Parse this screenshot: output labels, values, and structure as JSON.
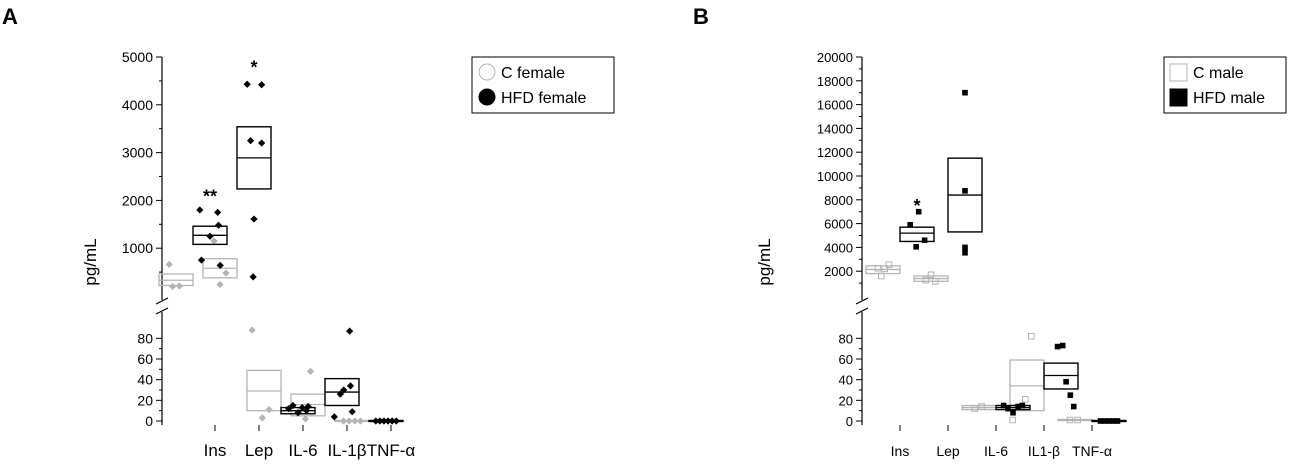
{
  "chart_data": [
    {
      "panel_label": "A",
      "type": "scatter",
      "ylabel": "pg/mL",
      "categories": [
        "Ins",
        "Lep",
        "IL-6",
        "IL-1β",
        "TNF-α"
      ],
      "axis_break": true,
      "y_upper": {
        "ylim": [
          0,
          5000
        ],
        "ticks": [
          1000,
          2000,
          3000,
          4000,
          5000
        ]
      },
      "y_lower": {
        "ylim": [
          0,
          90
        ],
        "ticks": [
          0,
          20,
          40,
          60,
          80
        ]
      },
      "legend": {
        "position": "top-right",
        "entries": [
          "C female",
          "HFD female"
        ],
        "marker": "circle"
      },
      "colors": {
        "control": "#b4b4b4",
        "hfd": "#000000"
      },
      "series": [
        {
          "name": "C female",
          "group": "control",
          "marker": "diamond",
          "points": [
            {
              "cat": 0,
              "off": -0.4,
              "seg": "upper",
              "y": 660
            },
            {
              "cat": 0,
              "off": -0.2,
              "seg": "upper",
              "y": 200
            },
            {
              "cat": 0,
              "off": 0.2,
              "seg": "upper",
              "y": 210
            },
            {
              "cat": 1,
              "off": -0.35,
              "seg": "upper",
              "y": 1150
            },
            {
              "cat": 1,
              "off": 0.0,
              "seg": "upper",
              "y": 240
            },
            {
              "cat": 1,
              "off": 0.35,
              "seg": "upper",
              "y": 480
            },
            {
              "cat": 2,
              "off": -0.7,
              "seg": "lower",
              "y": 88
            },
            {
              "cat": 2,
              "off": -0.1,
              "seg": "lower",
              "y": 3
            },
            {
              "cat": 2,
              "off": 0.3,
              "seg": "lower",
              "y": 11
            },
            {
              "cat": 3,
              "off": -0.55,
              "seg": "lower",
              "y": 9
            },
            {
              "cat": 3,
              "off": -0.15,
              "seg": "lower",
              "y": 2
            },
            {
              "cat": 3,
              "off": 0.15,
              "seg": "lower",
              "y": 48
            },
            {
              "cat": 4,
              "off": -0.5,
              "seg": "lower",
              "y": 0
            },
            {
              "cat": 4,
              "off": -0.17,
              "seg": "lower",
              "y": 0
            },
            {
              "cat": 4,
              "off": 0.17,
              "seg": "lower",
              "y": 0
            },
            {
              "cat": 4,
              "off": 0.5,
              "seg": "lower",
              "y": 0
            }
          ],
          "boxes": [
            {
              "cat": 0,
              "seg": "upper",
              "low": 220,
              "high": 460,
              "median": 330
            },
            {
              "cat": 1,
              "seg": "upper",
              "low": 380,
              "high": 780,
              "median": 580
            },
            {
              "cat": 2,
              "seg": "lower",
              "low": 10,
              "high": 49,
              "median": 29
            },
            {
              "cat": 3,
              "seg": "lower",
              "low": 5,
              "high": 26,
              "median": 16
            },
            {
              "cat": 4,
              "seg": "lower",
              "low": 0,
              "high": 0.5,
              "median": 0
            }
          ]
        },
        {
          "name": "HFD female",
          "group": "hfd",
          "marker": "diamond",
          "points": [
            {
              "cat": 0,
              "off": -0.6,
              "seg": "upper",
              "y": 1800
            },
            {
              "cat": 0,
              "off": -0.5,
              "seg": "upper",
              "y": 750
            },
            {
              "cat": 0,
              "off": 0.0,
              "seg": "upper",
              "y": 1250
            },
            {
              "cat": 0,
              "off": 0.45,
              "seg": "upper",
              "y": 1750
            },
            {
              "cat": 0,
              "off": 0.5,
              "seg": "upper",
              "y": 1480
            },
            {
              "cat": 0,
              "off": 0.6,
              "seg": "upper",
              "y": 640
            },
            {
              "cat": 1,
              "off": -0.4,
              "seg": "upper",
              "y": 4430
            },
            {
              "cat": 1,
              "off": 0.45,
              "seg": "upper",
              "y": 4420
            },
            {
              "cat": 1,
              "off": -0.2,
              "seg": "upper",
              "y": 3250
            },
            {
              "cat": 1,
              "off": 0.45,
              "seg": "upper",
              "y": 3200
            },
            {
              "cat": 1,
              "off": 0.0,
              "seg": "upper",
              "y": 1610
            },
            {
              "cat": 1,
              "off": -0.05,
              "seg": "upper",
              "y": 400
            },
            {
              "cat": 2,
              "off": -0.55,
              "seg": "lower",
              "y": 12
            },
            {
              "cat": 2,
              "off": -0.3,
              "seg": "lower",
              "y": 15
            },
            {
              "cat": 2,
              "off": 0.0,
              "seg": "lower",
              "y": 8
            },
            {
              "cat": 2,
              "off": 0.25,
              "seg": "lower",
              "y": 13
            },
            {
              "cat": 2,
              "off": 0.5,
              "seg": "lower",
              "y": 10
            },
            {
              "cat": 2,
              "off": 0.6,
              "seg": "lower",
              "y": 14
            },
            {
              "cat": 3,
              "off": -0.45,
              "seg": "lower",
              "y": 4
            },
            {
              "cat": 3,
              "off": -0.1,
              "seg": "lower",
              "y": 26
            },
            {
              "cat": 3,
              "off": 0.1,
              "seg": "lower",
              "y": 30
            },
            {
              "cat": 3,
              "off": 0.45,
              "seg": "lower",
              "y": 87
            },
            {
              "cat": 3,
              "off": 0.5,
              "seg": "lower",
              "y": 34
            },
            {
              "cat": 3,
              "off": 0.6,
              "seg": "lower",
              "y": 9
            },
            {
              "cat": 4,
              "off": -0.6,
              "seg": "lower",
              "y": 0
            },
            {
              "cat": 4,
              "off": -0.36,
              "seg": "lower",
              "y": 0
            },
            {
              "cat": 4,
              "off": -0.12,
              "seg": "lower",
              "y": 0
            },
            {
              "cat": 4,
              "off": 0.12,
              "seg": "lower",
              "y": 0
            },
            {
              "cat": 4,
              "off": 0.36,
              "seg": "lower",
              "y": 0
            },
            {
              "cat": 4,
              "off": 0.6,
              "seg": "lower",
              "y": 0
            }
          ],
          "boxes": [
            {
              "cat": 0,
              "seg": "upper",
              "low": 1080,
              "high": 1460,
              "median": 1270
            },
            {
              "cat": 1,
              "seg": "upper",
              "low": 2240,
              "high": 3540,
              "median": 2890
            },
            {
              "cat": 2,
              "seg": "lower",
              "low": 7,
              "high": 13,
              "median": 10
            },
            {
              "cat": 3,
              "seg": "lower",
              "low": 15,
              "high": 41,
              "median": 28
            },
            {
              "cat": 4,
              "seg": "lower",
              "low": 0,
              "high": 0.5,
              "median": 0
            }
          ]
        }
      ],
      "annotations": [
        {
          "text": "**",
          "cat": 0,
          "seg": "upper",
          "y": 2080
        },
        {
          "text": "*",
          "cat": 1,
          "seg": "upper",
          "y": 4780
        }
      ]
    },
    {
      "panel_label": "B",
      "type": "scatter",
      "ylabel": "pg/mL",
      "categories": [
        "Ins",
        "Lep",
        "IL-6",
        "IL1-β",
        "TNF-α"
      ],
      "axis_break": true,
      "y_upper": {
        "ylim": [
          0,
          20000
        ],
        "ticks": [
          2000,
          4000,
          6000,
          8000,
          10000,
          12000,
          14000,
          16000,
          18000,
          20000
        ]
      },
      "y_lower": {
        "ylim": [
          0,
          90
        ],
        "ticks": [
          0,
          20,
          40,
          60,
          80
        ]
      },
      "legend": {
        "position": "top-right",
        "entries": [
          "C male",
          "HFD male"
        ],
        "marker": "square"
      },
      "colors": {
        "control": "#b4b4b4",
        "hfd": "#000000"
      },
      "series": [
        {
          "name": "C male",
          "group": "control",
          "marker": "square-open",
          "points": [
            {
              "cat": 0,
              "off": -0.3,
              "seg": "upper",
              "y": 2250
            },
            {
              "cat": 0,
              "off": -0.1,
              "seg": "upper",
              "y": 1600
            },
            {
              "cat": 0,
              "off": 0.1,
              "seg": "upper",
              "y": 2200
            },
            {
              "cat": 0,
              "off": 0.35,
              "seg": "upper",
              "y": 2550
            },
            {
              "cat": 1,
              "off": -0.3,
              "seg": "upper",
              "y": 1250
            },
            {
              "cat": 1,
              "off": 0.0,
              "seg": "upper",
              "y": 1700
            },
            {
              "cat": 1,
              "off": 0.25,
              "seg": "upper",
              "y": 1150
            },
            {
              "cat": 2,
              "off": -0.25,
              "seg": "lower",
              "y": 12
            },
            {
              "cat": 2,
              "off": 0.15,
              "seg": "lower",
              "y": 14
            },
            {
              "cat": 3,
              "off": -0.85,
              "seg": "lower",
              "y": 1
            },
            {
              "cat": 3,
              "off": -0.1,
              "seg": "lower",
              "y": 21
            },
            {
              "cat": 3,
              "off": 0.25,
              "seg": "lower",
              "y": 82
            },
            {
              "cat": 4,
              "off": -0.3,
              "seg": "lower",
              "y": 1
            },
            {
              "cat": 4,
              "off": 0.15,
              "seg": "lower",
              "y": 1
            }
          ],
          "boxes": [
            {
              "cat": 0,
              "seg": "upper",
              "low": 1800,
              "high": 2450,
              "median": 2150
            },
            {
              "cat": 1,
              "seg": "upper",
              "low": 1150,
              "high": 1600,
              "median": 1380
            },
            {
              "cat": 2,
              "seg": "lower",
              "low": 11,
              "high": 15,
              "median": 13
            },
            {
              "cat": 3,
              "seg": "lower",
              "low": 10,
              "high": 59,
              "median": 34
            },
            {
              "cat": 4,
              "seg": "lower",
              "low": 0.5,
              "high": 1.5,
              "median": 1
            }
          ]
        },
        {
          "name": "HFD male",
          "group": "hfd",
          "marker": "square",
          "points": [
            {
              "cat": 0,
              "off": -0.4,
              "seg": "upper",
              "y": 5900
            },
            {
              "cat": 0,
              "off": -0.05,
              "seg": "upper",
              "y": 4050
            },
            {
              "cat": 0,
              "off": 0.1,
              "seg": "upper",
              "y": 7000
            },
            {
              "cat": 0,
              "off": 0.45,
              "seg": "upper",
              "y": 4600
            },
            {
              "cat": 1,
              "off": 0.0,
              "seg": "upper",
              "y": 17000
            },
            {
              "cat": 1,
              "off": 0.0,
              "seg": "upper",
              "y": 8750
            },
            {
              "cat": 1,
              "off": 0.0,
              "seg": "upper",
              "y": 4000
            },
            {
              "cat": 1,
              "off": 0.0,
              "seg": "upper",
              "y": 3550
            },
            {
              "cat": 2,
              "off": -0.55,
              "seg": "lower",
              "y": 15
            },
            {
              "cat": 2,
              "off": -0.3,
              "seg": "lower",
              "y": 12
            },
            {
              "cat": 2,
              "off": 0.0,
              "seg": "lower",
              "y": 8
            },
            {
              "cat": 2,
              "off": 0.3,
              "seg": "lower",
              "y": 14
            },
            {
              "cat": 2,
              "off": 0.55,
              "seg": "lower",
              "y": 15
            },
            {
              "cat": 3,
              "off": -0.2,
              "seg": "lower",
              "y": 72
            },
            {
              "cat": 3,
              "off": 0.1,
              "seg": "lower",
              "y": 73
            },
            {
              "cat": 3,
              "off": 0.3,
              "seg": "lower",
              "y": 38
            },
            {
              "cat": 3,
              "off": 0.55,
              "seg": "lower",
              "y": 25
            },
            {
              "cat": 3,
              "off": 0.75,
              "seg": "lower",
              "y": 14
            },
            {
              "cat": 4,
              "off": -0.5,
              "seg": "lower",
              "y": 0
            },
            {
              "cat": 4,
              "off": -0.25,
              "seg": "lower",
              "y": 0
            },
            {
              "cat": 4,
              "off": 0.0,
              "seg": "lower",
              "y": 0
            },
            {
              "cat": 4,
              "off": 0.25,
              "seg": "lower",
              "y": 0
            },
            {
              "cat": 4,
              "off": 0.5,
              "seg": "lower",
              "y": 0
            }
          ],
          "boxes": [
            {
              "cat": 0,
              "seg": "upper",
              "low": 4500,
              "high": 5700,
              "median": 5200
            },
            {
              "cat": 1,
              "seg": "upper",
              "low": 5300,
              "high": 11500,
              "median": 8400
            },
            {
              "cat": 2,
              "seg": "lower",
              "low": 11,
              "high": 15,
              "median": 13
            },
            {
              "cat": 3,
              "seg": "lower",
              "low": 31,
              "high": 56,
              "median": 44
            },
            {
              "cat": 4,
              "seg": "lower",
              "low": 0,
              "high": 0.5,
              "median": 0
            }
          ]
        }
      ],
      "annotations": [
        {
          "text": "*",
          "cat": 0,
          "seg": "upper",
          "y": 7500
        }
      ]
    }
  ]
}
